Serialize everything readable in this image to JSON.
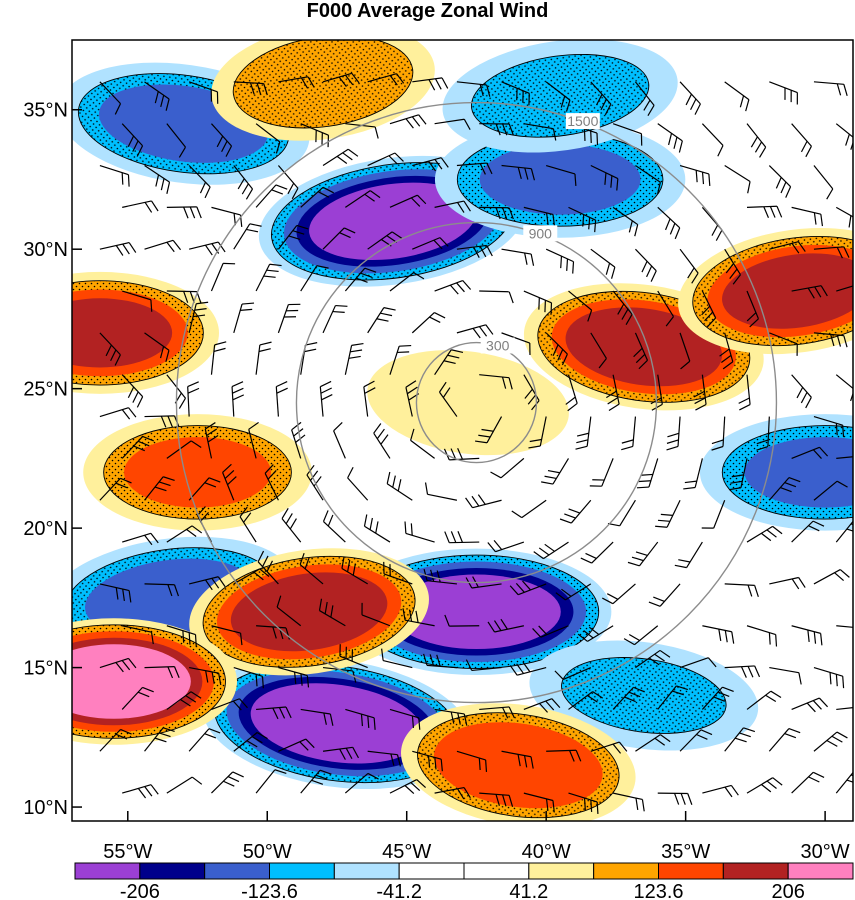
{
  "title": "F000 Average Zonal Wind",
  "chart_data": {
    "type": "heatmap",
    "title": "F000 Average Zonal Wind",
    "x_ticks": [
      "55°W",
      "50°W",
      "45°W",
      "40°W",
      "35°W",
      "30°W"
    ],
    "y_ticks": [
      "35°N",
      "30°N",
      "25°N",
      "20°N",
      "15°N",
      "10°N"
    ],
    "xlim": [
      -57,
      -29
    ],
    "ylim": [
      9.5,
      37.5
    ],
    "colorbar": {
      "levels": [
        "-206",
        "-123.6",
        "-41.2",
        "41.2",
        "123.6",
        "206"
      ],
      "colors": [
        "#9b3fd4",
        "#00008b",
        "#3a5fcd",
        "#00bfff",
        "#b0e2ff",
        "#ffffff",
        "#ffffff",
        "#fff09c",
        "#ffa500",
        "#ff4500",
        "#b22222",
        "#ff80bf"
      ]
    },
    "range_rings": [
      "300",
      "900",
      "1500"
    ],
    "ring_center": [
      -42.5,
      24.5
    ],
    "positive_regions": [
      {
        "lon": -48.0,
        "lat": 36.0,
        "value": 120
      },
      {
        "lon": -56.0,
        "lat": 27.0,
        "value": 170
      },
      {
        "lon": -36.5,
        "lat": 26.5,
        "value": 190
      },
      {
        "lon": -31.0,
        "lat": 28.5,
        "value": 180
      },
      {
        "lon": -52.5,
        "lat": 22.0,
        "value": 130
      },
      {
        "lon": -42.8,
        "lat": 24.5,
        "value": 80
      },
      {
        "lon": -48.5,
        "lat": 17.0,
        "value": 190
      },
      {
        "lon": -55.5,
        "lat": 14.5,
        "value": 230
      },
      {
        "lon": -41.0,
        "lat": 11.5,
        "value": 160
      }
    ],
    "negative_regions": [
      {
        "lon": -45.5,
        "lat": 31.0,
        "value": -230
      },
      {
        "lon": -39.5,
        "lat": 32.5,
        "value": -130
      },
      {
        "lon": -53.0,
        "lat": 34.5,
        "value": -140
      },
      {
        "lon": -39.5,
        "lat": 35.5,
        "value": -100
      },
      {
        "lon": -42.5,
        "lat": 17.0,
        "value": -230
      },
      {
        "lon": -47.5,
        "lat": 13.0,
        "value": -240
      },
      {
        "lon": -53.5,
        "lat": 17.5,
        "value": -140
      },
      {
        "lon": -30.0,
        "lat": 22.0,
        "value": -130
      },
      {
        "lon": -36.5,
        "lat": 14.0,
        "value": -90
      }
    ]
  }
}
